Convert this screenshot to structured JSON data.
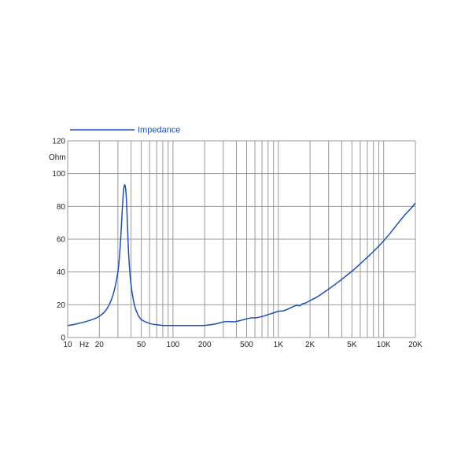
{
  "chart_data": {
    "type": "line",
    "title": "",
    "xlabel": "Hz",
    "ylabel": "Ohm",
    "x_scale": "log",
    "xlim": [
      10,
      20000
    ],
    "ylim": [
      0,
      120
    ],
    "grid": true,
    "legend_position": "top-left",
    "x_ticks": [
      {
        "value": 10,
        "label": "10"
      },
      {
        "value": 20,
        "label": "20"
      },
      {
        "value": 50,
        "label": "50"
      },
      {
        "value": 100,
        "label": "100"
      },
      {
        "value": 200,
        "label": "200"
      },
      {
        "value": 500,
        "label": "500"
      },
      {
        "value": 1000,
        "label": "1K"
      },
      {
        "value": 2000,
        "label": "2K"
      },
      {
        "value": 5000,
        "label": "5K"
      },
      {
        "value": 10000,
        "label": "10K"
      },
      {
        "value": 20000,
        "label": "20K"
      }
    ],
    "y_ticks": [
      0,
      20,
      40,
      60,
      80,
      100,
      120
    ],
    "series": [
      {
        "name": "Impedance",
        "color": "#1f4fb5",
        "x": [
          10,
          12,
          15,
          18,
          20,
          23,
          26,
          28,
          30,
          31,
          32,
          33,
          34,
          35,
          36,
          37,
          38,
          40,
          43,
          46,
          50,
          60,
          70,
          80,
          100,
          130,
          160,
          200,
          250,
          300,
          330,
          380,
          450,
          550,
          600,
          700,
          800,
          900,
          1000,
          1100,
          1200,
          1400,
          1500,
          1600,
          1700,
          1800,
          2000,
          2300,
          2500,
          3000,
          4000,
          5000,
          6000,
          7000,
          8000,
          10000,
          12000,
          14000,
          16000,
          18000,
          20000
        ],
        "y": [
          7.3,
          8.2,
          9.8,
          11.5,
          13.0,
          16.5,
          23.0,
          30.0,
          40.0,
          49.0,
          62.0,
          78.0,
          90.0,
          93.0,
          86.0,
          68.0,
          50.0,
          32.0,
          20.0,
          14.5,
          11.0,
          8.6,
          7.8,
          7.4,
          7.3,
          7.3,
          7.3,
          7.4,
          8.2,
          9.5,
          9.8,
          9.6,
          10.6,
          12.0,
          12.0,
          12.8,
          14.0,
          15.0,
          16.0,
          16.2,
          17.0,
          19.0,
          19.6,
          19.4,
          20.6,
          21.0,
          22.5,
          24.5,
          26.0,
          29.5,
          35.5,
          40.5,
          45.0,
          49.0,
          52.5,
          59.0,
          65.0,
          70.5,
          75.0,
          78.5,
          82.0
        ]
      }
    ]
  }
}
